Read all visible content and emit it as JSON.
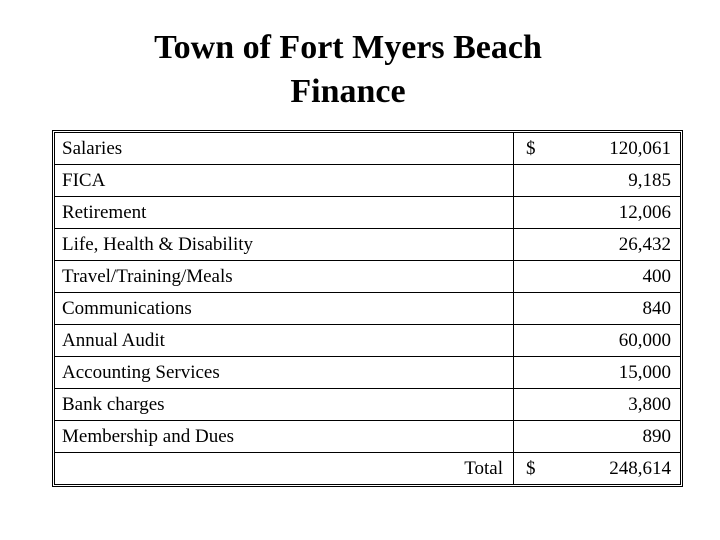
{
  "title": {
    "line1": "Town of Fort Myers Beach",
    "line2": "Finance"
  },
  "rows": [
    {
      "label": "Salaries",
      "currency": "$",
      "amount": "120,061"
    },
    {
      "label": "FICA",
      "currency": "",
      "amount": "9,185"
    },
    {
      "label": "Retirement",
      "currency": "",
      "amount": "12,006"
    },
    {
      "label": "Life, Health & Disability",
      "currency": "",
      "amount": "26,432"
    },
    {
      "label": "Travel/Training/Meals",
      "currency": "",
      "amount": "400"
    },
    {
      "label": "Communications",
      "currency": "",
      "amount": "840"
    },
    {
      "label": "Annual Audit",
      "currency": "",
      "amount": "60,000"
    },
    {
      "label": "Accounting Services",
      "currency": "",
      "amount": "15,000"
    },
    {
      "label": "Bank charges",
      "currency": "",
      "amount": "3,800"
    },
    {
      "label": "Membership and Dues",
      "currency": "",
      "amount": "890"
    }
  ],
  "total": {
    "label": "Total",
    "currency": "$",
    "amount": "248,614"
  }
}
